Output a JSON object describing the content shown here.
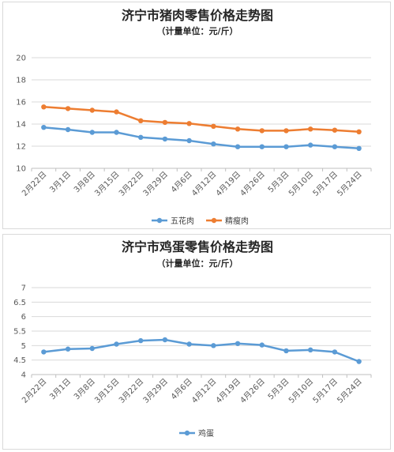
{
  "chart_data": [
    {
      "type": "line",
      "title": "济宁市猪肉零售价格走势图",
      "subtitle": "（计量单位：元/斤）",
      "categories": [
        "2月22日",
        "3月1日",
        "3月8日",
        "3月15日",
        "3月22日",
        "3月29日",
        "4月6日",
        "4月12日",
        "4月19日",
        "4月26日",
        "5月3日",
        "5月10日",
        "5月17日",
        "5月24日"
      ],
      "ylim": [
        10,
        20
      ],
      "yticks": [
        10,
        12,
        14,
        16,
        18,
        20
      ],
      "grid": true,
      "legend_position": "bottom",
      "series": [
        {
          "name": "五花肉",
          "color": "#5b9bd5",
          "values": [
            13.7,
            13.5,
            13.25,
            13.25,
            12.8,
            12.65,
            12.5,
            12.2,
            11.95,
            11.95,
            11.95,
            12.1,
            11.95,
            11.8
          ]
        },
        {
          "name": "精瘦肉",
          "color": "#ed7d31",
          "values": [
            15.55,
            15.4,
            15.25,
            15.1,
            14.3,
            14.15,
            14.05,
            13.8,
            13.55,
            13.4,
            13.4,
            13.55,
            13.45,
            13.3
          ]
        }
      ]
    },
    {
      "type": "line",
      "title": "济宁市鸡蛋零售价格走势图",
      "subtitle": "（计量单位：元/斤）",
      "categories": [
        "2月22日",
        "3月1日",
        "3月8日",
        "3月15日",
        "3月22日",
        "3月29日",
        "4月6日",
        "4月12日",
        "4月19日",
        "4月26日",
        "5月3日",
        "5月10日",
        "5月17日",
        "5月24日"
      ],
      "ylim": [
        4,
        7
      ],
      "yticks": [
        4,
        4.5,
        5,
        5.5,
        6,
        6.5,
        7
      ],
      "grid": true,
      "legend_position": "bottom",
      "series": [
        {
          "name": "鸡蛋",
          "color": "#5b9bd5",
          "values": [
            4.78,
            4.88,
            4.9,
            5.05,
            5.17,
            5.2,
            5.05,
            5.0,
            5.07,
            5.02,
            4.82,
            4.85,
            4.78,
            4.45
          ]
        }
      ]
    }
  ]
}
